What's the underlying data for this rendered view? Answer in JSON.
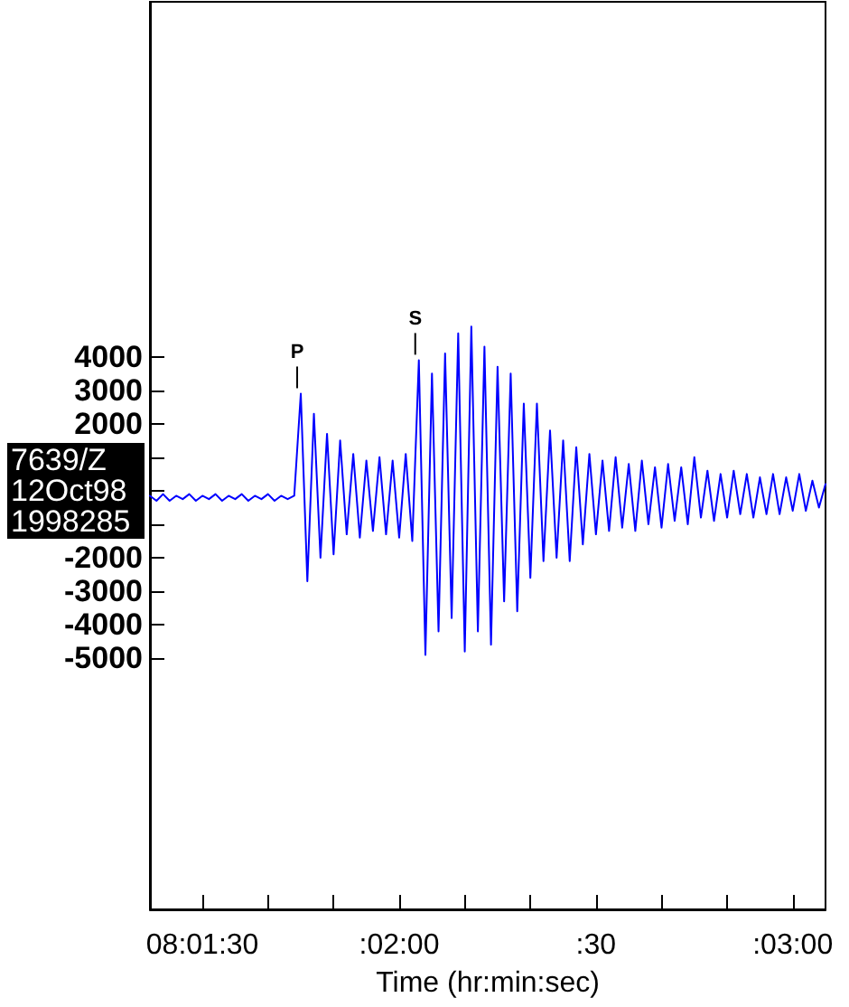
{
  "chart_data": {
    "type": "line",
    "xlabel": "Time (hr:min:sec)",
    "annotations": [
      "7639/Z",
      "12Oct98",
      "1998285",
      {
        "text": "P",
        "x": "1998-10-12T08:01:45",
        "y": 2900
      },
      {
        "text": "S",
        "x": "1998-10-12T08:02:03",
        "y": 3900
      }
    ],
    "xlim": [
      "1998-10-12T08:01:22",
      "1998-10-12T08:03:05"
    ],
    "xticks": [
      {
        "value": "1998-10-12T08:01:30",
        "label": "08:01:30"
      },
      {
        "value": "1998-10-12T08:01:40",
        "label": null
      },
      {
        "value": "1998-10-12T08:01:50",
        "label": null
      },
      {
        "value": "1998-10-12T08:02:00",
        "label": ":02:00"
      },
      {
        "value": "1998-10-12T08:02:10",
        "label": null
      },
      {
        "value": "1998-10-12T08:02:20",
        "label": null
      },
      {
        "value": "1998-10-12T08:02:30",
        "label": ":30"
      },
      {
        "value": "1998-10-12T08:02:40",
        "label": null
      },
      {
        "value": "1998-10-12T08:02:50",
        "label": null
      },
      {
        "value": "1998-10-12T08:03:00",
        "label": ":03:00"
      }
    ],
    "ylim": [
      -12500,
      14600
    ],
    "yticks": [
      -5000,
      -4000,
      -3000,
      -2000,
      {
        "value": -1000,
        "label": null
      },
      {
        "value": 0,
        "label": null
      },
      {
        "value": 1000,
        "label": null
      },
      2000,
      3000,
      4000
    ],
    "grid": false,
    "marker": "none",
    "line_style": "solid",
    "x": [
      "1998-10-12T08:01:22",
      "1998-10-12T08:01:23",
      "1998-10-12T08:01:24",
      "1998-10-12T08:01:25",
      "1998-10-12T08:01:26",
      "1998-10-12T08:01:27",
      "1998-10-12T08:01:28",
      "1998-10-12T08:01:29",
      "1998-10-12T08:01:30",
      "1998-10-12T08:01:31",
      "1998-10-12T08:01:32",
      "1998-10-12T08:01:33",
      "1998-10-12T08:01:34",
      "1998-10-12T08:01:35",
      "1998-10-12T08:01:36",
      "1998-10-12T08:01:37",
      "1998-10-12T08:01:38",
      "1998-10-12T08:01:39",
      "1998-10-12T08:01:40",
      "1998-10-12T08:01:41",
      "1998-10-12T08:01:42",
      "1998-10-12T08:01:43",
      "1998-10-12T08:01:44",
      "1998-10-12T08:01:45",
      "1998-10-12T08:01:46",
      "1998-10-12T08:01:47",
      "1998-10-12T08:01:48",
      "1998-10-12T08:01:49",
      "1998-10-12T08:01:50",
      "1998-10-12T08:01:51",
      "1998-10-12T08:01:52",
      "1998-10-12T08:01:53",
      "1998-10-12T08:01:54",
      "1998-10-12T08:01:55",
      "1998-10-12T08:01:56",
      "1998-10-12T08:01:57",
      "1998-10-12T08:01:58",
      "1998-10-12T08:01:59",
      "1998-10-12T08:02:00",
      "1998-10-12T08:02:01",
      "1998-10-12T08:02:02",
      "1998-10-12T08:02:03",
      "1998-10-12T08:02:04",
      "1998-10-12T08:02:05",
      "1998-10-12T08:02:06",
      "1998-10-12T08:02:07",
      "1998-10-12T08:02:08",
      "1998-10-12T08:02:09",
      "1998-10-12T08:02:10",
      "1998-10-12T08:02:11",
      "1998-10-12T08:02:12",
      "1998-10-12T08:02:13",
      "1998-10-12T08:02:14",
      "1998-10-12T08:02:15",
      "1998-10-12T08:02:16",
      "1998-10-12T08:02:17",
      "1998-10-12T08:02:18",
      "1998-10-12T08:02:19",
      "1998-10-12T08:02:20",
      "1998-10-12T08:02:21",
      "1998-10-12T08:02:22",
      "1998-10-12T08:02:23",
      "1998-10-12T08:02:24",
      "1998-10-12T08:02:25",
      "1998-10-12T08:02:26",
      "1998-10-12T08:02:27",
      "1998-10-12T08:02:28",
      "1998-10-12T08:02:29",
      "1998-10-12T08:02:30",
      "1998-10-12T08:02:31",
      "1998-10-12T08:02:32",
      "1998-10-12T08:02:33",
      "1998-10-12T08:02:34",
      "1998-10-12T08:02:35",
      "1998-10-12T08:02:36",
      "1998-10-12T08:02:37",
      "1998-10-12T08:02:38",
      "1998-10-12T08:02:39",
      "1998-10-12T08:02:40",
      "1998-10-12T08:02:41",
      "1998-10-12T08:02:42",
      "1998-10-12T08:02:43",
      "1998-10-12T08:02:44",
      "1998-10-12T08:02:45",
      "1998-10-12T08:02:46",
      "1998-10-12T08:02:47",
      "1998-10-12T08:02:48",
      "1998-10-12T08:02:49",
      "1998-10-12T08:02:50",
      "1998-10-12T08:02:51",
      "1998-10-12T08:02:52",
      "1998-10-12T08:02:53",
      "1998-10-12T08:02:54",
      "1998-10-12T08:02:55",
      "1998-10-12T08:02:56",
      "1998-10-12T08:02:57",
      "1998-10-12T08:02:58",
      "1998-10-12T08:02:59",
      "1998-10-12T08:03:00",
      "1998-10-12T08:03:01",
      "1998-10-12T08:03:02",
      "1998-10-12T08:03:03",
      "1998-10-12T08:03:04",
      "1998-10-12T08:03:05"
    ],
    "series": [
      {
        "color": "#0000ff",
        "values": [
          -150,
          -300,
          -100,
          -300,
          -150,
          -250,
          -100,
          -300,
          -150,
          -250,
          -100,
          -300,
          -150,
          -250,
          -100,
          -300,
          -150,
          -250,
          -100,
          -300,
          -150,
          -250,
          -150,
          2900,
          -2700,
          2300,
          -2000,
          1700,
          -1900,
          1500,
          -1300,
          1100,
          -1400,
          900,
          -1200,
          1000,
          -1300,
          900,
          -1400,
          1100,
          -1500,
          3900,
          -4900,
          3500,
          -4200,
          4100,
          -3800,
          4700,
          -4800,
          4900,
          -4200,
          4300,
          -4600,
          3700,
          -3300,
          3500,
          -3600,
          2600,
          -2600,
          2600,
          -2100,
          1800,
          -2000,
          1500,
          -2100,
          1300,
          -1600,
          1100,
          -1300,
          900,
          -1200,
          1000,
          -1100,
          800,
          -1200,
          900,
          -1000,
          700,
          -1100,
          800,
          -900,
          700,
          -1000,
          1000,
          -800,
          600,
          -900,
          500,
          -800,
          600,
          -700,
          500,
          -800,
          400,
          -700,
          500,
          -700,
          400,
          -600,
          500,
          -600,
          300,
          -500,
          200
        ]
      }
    ]
  }
}
